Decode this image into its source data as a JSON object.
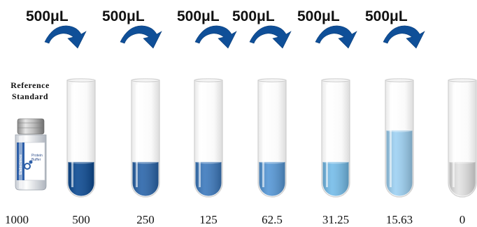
{
  "transfer_volumes": [
    "500μL",
    "500μL",
    "500μL",
    "500μL",
    "500μL",
    "500μL"
  ],
  "reference": {
    "title_line1": "Reference",
    "title_line2": "Standard",
    "vial_label_brand": "Elabscience",
    "vial_label_line1": "Protein",
    "vial_label_line2": "Buffer"
  },
  "concentrations": [
    "1000",
    "500",
    "250",
    "125",
    "62.5",
    "31.25",
    "15.63",
    "0"
  ],
  "tubes": [
    {
      "color": "#0c4a92",
      "fill": 0.3
    },
    {
      "color": "#2a65aa",
      "fill": 0.3
    },
    {
      "color": "#3c79bd",
      "fill": 0.3
    },
    {
      "color": "#5597d6",
      "fill": 0.3
    },
    {
      "color": "#74bce9",
      "fill": 0.3
    },
    {
      "color": "#9dd1f3",
      "fill": 0.57
    },
    {
      "color": "#e2e2e2",
      "fill": 0.3
    }
  ],
  "colors": {
    "arrow": "#0f4f98",
    "tube_outline": "#cfcfcf"
  }
}
